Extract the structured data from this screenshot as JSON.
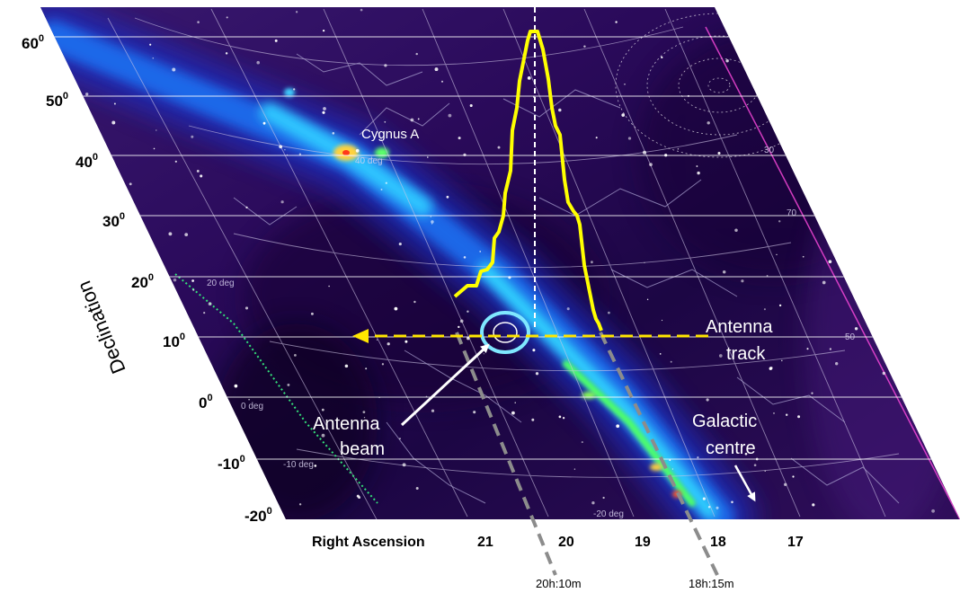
{
  "axes": {
    "y_title": "Declination",
    "x_title": "Right Ascension",
    "declination_ticks": [
      {
        "value": "60",
        "unit": "0"
      },
      {
        "value": "50",
        "unit": "0"
      },
      {
        "value": "40",
        "unit": "0"
      },
      {
        "value": "30",
        "unit": "0"
      },
      {
        "value": "20",
        "unit": "0"
      },
      {
        "value": "10",
        "unit": "0"
      },
      {
        "value": "0",
        "unit": "0"
      },
      {
        "value": "-10",
        "unit": "0"
      },
      {
        "value": "-20",
        "unit": "0"
      }
    ],
    "ra_ticks": [
      "21",
      "20",
      "19",
      "18",
      "17"
    ]
  },
  "annotations": {
    "cygnus": "Cygnus A",
    "antenna_track_line1": "Antenna",
    "antenna_track_line2": "track",
    "antenna_beam_line1": "Antenna",
    "antenna_beam_line2": "beam",
    "galactic_line1": "Galactic",
    "galactic_line2": "centre",
    "time_left": "20h:10m",
    "time_right": "18h:15m"
  },
  "grid_labels": {
    "deg_40": "40 deg",
    "deg_20": "20 deg",
    "deg_0": "0 deg",
    "deg_m10": "-10 deg",
    "deg_m20": "-20 deg",
    "n30": "30",
    "n50": "50",
    "n70": "70",
    "n40": "40"
  },
  "colors": {
    "sky_background": "#2a0b58",
    "galactic_plane": "#1aa3ff",
    "drift_curve": "#ffff00",
    "antenna_track": "#ffe600",
    "beam_ring": "#7fe7ff",
    "time_marker": "#8c8c8c"
  }
}
